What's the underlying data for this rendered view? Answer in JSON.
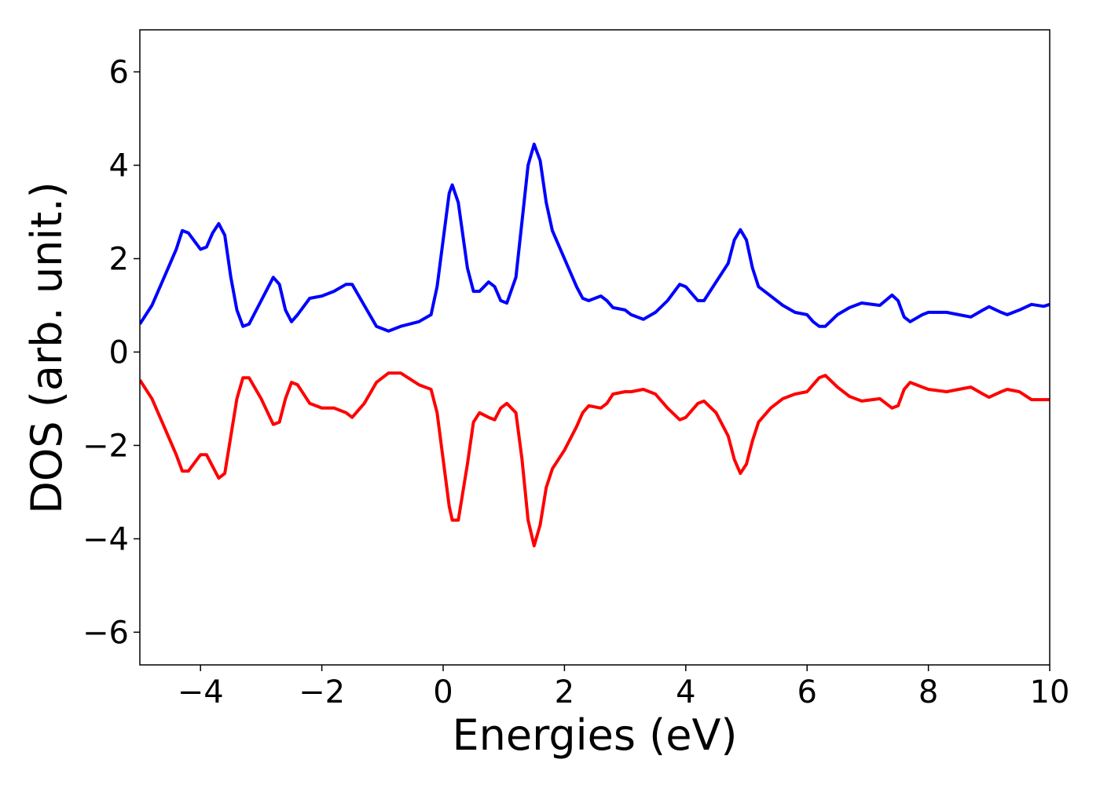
{
  "chart_data": {
    "type": "line",
    "x_label": "Energies (eV)",
    "y_label": "DOS (arb. unit.)",
    "x": [
      -5,
      -4.8,
      -4.6,
      -4.4,
      -4.3,
      -4.2,
      -4.0,
      -3.9,
      -3.8,
      -3.7,
      -3.6,
      -3.5,
      -3.4,
      -3.3,
      -3.2,
      -3.0,
      -2.8,
      -2.7,
      -2.6,
      -2.5,
      -2.4,
      -2.2,
      -2.0,
      -1.8,
      -1.6,
      -1.5,
      -1.3,
      -1.1,
      -0.9,
      -0.7,
      -0.4,
      -0.2,
      -0.1,
      0.0,
      0.1,
      0.15,
      0.25,
      0.4,
      0.5,
      0.6,
      0.75,
      0.85,
      0.95,
      1.05,
      1.2,
      1.3,
      1.4,
      1.5,
      1.6,
      1.7,
      1.8,
      2.0,
      2.2,
      2.3,
      2.4,
      2.6,
      2.7,
      2.8,
      3.0,
      3.1,
      3.3,
      3.5,
      3.7,
      3.9,
      4.0,
      4.2,
      4.3,
      4.5,
      4.7,
      4.8,
      4.9,
      5.0,
      5.1,
      5.2,
      5.4,
      5.6,
      5.8,
      6.0,
      6.1,
      6.2,
      6.3,
      6.5,
      6.7,
      6.9,
      7.2,
      7.4,
      7.5,
      7.6,
      7.7,
      7.9,
      8.0,
      8.3,
      8.5,
      8.7,
      8.9,
      9.0,
      9.2,
      9.3,
      9.5,
      9.7,
      9.9,
      10.0
    ],
    "series": [
      {
        "color": "#0000ff",
        "values": [
          0.6,
          1.0,
          1.6,
          2.2,
          2.6,
          2.55,
          2.2,
          2.25,
          2.55,
          2.75,
          2.5,
          1.6,
          0.9,
          0.55,
          0.6,
          1.1,
          1.6,
          1.45,
          0.9,
          0.65,
          0.8,
          1.15,
          1.2,
          1.3,
          1.45,
          1.45,
          1.0,
          0.55,
          0.45,
          0.55,
          0.65,
          0.8,
          1.4,
          2.4,
          3.4,
          3.58,
          3.2,
          1.8,
          1.3,
          1.3,
          1.5,
          1.4,
          1.1,
          1.05,
          1.6,
          2.8,
          4.0,
          4.45,
          4.1,
          3.2,
          2.6,
          2.0,
          1.4,
          1.15,
          1.1,
          1.2,
          1.1,
          0.95,
          0.9,
          0.8,
          0.7,
          0.85,
          1.1,
          1.45,
          1.4,
          1.1,
          1.1,
          1.5,
          1.9,
          2.4,
          2.62,
          2.4,
          1.8,
          1.4,
          1.2,
          1.0,
          0.85,
          0.8,
          0.65,
          0.55,
          0.55,
          0.8,
          0.95,
          1.05,
          1.0,
          1.22,
          1.1,
          0.75,
          0.65,
          0.8,
          0.85,
          0.85,
          0.8,
          0.75,
          0.9,
          0.97,
          0.85,
          0.8,
          0.9,
          1.02,
          0.98,
          1.02
        ]
      },
      {
        "color": "#ff0000",
        "values": [
          -0.6,
          -1.0,
          -1.6,
          -2.2,
          -2.55,
          -2.55,
          -2.2,
          -2.2,
          -2.45,
          -2.7,
          -2.6,
          -1.8,
          -1.0,
          -0.55,
          -0.55,
          -1.0,
          -1.55,
          -1.5,
          -1.0,
          -0.65,
          -0.7,
          -1.1,
          -1.2,
          -1.2,
          -1.3,
          -1.4,
          -1.1,
          -0.65,
          -0.45,
          -0.45,
          -0.7,
          -0.8,
          -1.3,
          -2.3,
          -3.3,
          -3.6,
          -3.6,
          -2.4,
          -1.5,
          -1.3,
          -1.4,
          -1.45,
          -1.2,
          -1.1,
          -1.3,
          -2.3,
          -3.6,
          -4.15,
          -3.7,
          -2.9,
          -2.5,
          -2.1,
          -1.6,
          -1.3,
          -1.15,
          -1.2,
          -1.1,
          -0.9,
          -0.85,
          -0.85,
          -0.8,
          -0.9,
          -1.2,
          -1.45,
          -1.4,
          -1.1,
          -1.05,
          -1.3,
          -1.8,
          -2.3,
          -2.6,
          -2.4,
          -1.9,
          -1.5,
          -1.2,
          -1.0,
          -0.9,
          -0.85,
          -0.7,
          -0.55,
          -0.5,
          -0.75,
          -0.95,
          -1.05,
          -1.0,
          -1.2,
          -1.15,
          -0.8,
          -0.65,
          -0.75,
          -0.8,
          -0.85,
          -0.8,
          -0.75,
          -0.9,
          -0.97,
          -0.85,
          -0.8,
          -0.85,
          -1.02,
          -1.02,
          -1.02
        ]
      }
    ],
    "xlim": [
      -5,
      10
    ],
    "ylim": [
      -6.7,
      6.9
    ],
    "xticks": [
      {
        "value": -4,
        "label": "−4"
      },
      {
        "value": -2,
        "label": "−2"
      },
      0,
      2,
      4,
      6,
      8,
      10
    ],
    "yticks": [
      {
        "value": -6,
        "label": "−6"
      },
      {
        "value": -4,
        "label": "−4"
      },
      {
        "value": -2,
        "label": "−2"
      },
      0,
      2,
      4,
      6
    ]
  }
}
